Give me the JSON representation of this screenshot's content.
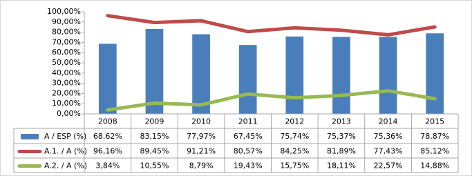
{
  "chart_data": {
    "type": "bar",
    "categories": [
      "2008",
      "2009",
      "2010",
      "2011",
      "2012",
      "2013",
      "2014",
      "2015"
    ],
    "series": [
      {
        "name": "A / ESP (%)",
        "type": "bar",
        "color": "#4a7ebb",
        "values": [
          68.62,
          83.15,
          77.97,
          67.45,
          75.74,
          75.37,
          75.36,
          78.87
        ],
        "value_labels": [
          "68,62%",
          "83,15%",
          "77,97%",
          "67,45%",
          "75,74%",
          "75,37%",
          "75,36%",
          "78,87%"
        ]
      },
      {
        "name": "A.1. / A (%)",
        "type": "line",
        "color": "#be4b48",
        "values": [
          96.16,
          89.45,
          91.21,
          80.57,
          84.25,
          81.89,
          77.43,
          85.12
        ],
        "value_labels": [
          "96,16%",
          "89,45%",
          "91,21%",
          "80,57%",
          "84,25%",
          "81,89%",
          "77,43%",
          "85,12%"
        ]
      },
      {
        "name": "A.2. / A (%)",
        "type": "line",
        "color": "#98b954",
        "values": [
          3.84,
          10.55,
          8.79,
          19.43,
          15.75,
          18.11,
          22.57,
          14.88
        ],
        "value_labels": [
          "3,84%",
          "10,55%",
          "8,79%",
          "19,43%",
          "15,75%",
          "18,11%",
          "22,57%",
          "14,88%"
        ]
      }
    ],
    "ylim": [
      0,
      100
    ],
    "yticks": [
      {
        "value": 0,
        "label": "0,00%"
      },
      {
        "value": 10,
        "label": "10,00%"
      },
      {
        "value": 20,
        "label": "20,00%"
      },
      {
        "value": 30,
        "label": "30,00%"
      },
      {
        "value": 40,
        "label": "40,00%"
      },
      {
        "value": 50,
        "label": "50,00%"
      },
      {
        "value": 60,
        "label": "60,00%"
      },
      {
        "value": 70,
        "label": "70,00%"
      },
      {
        "value": 80,
        "label": "80,00%"
      },
      {
        "value": 90,
        "label": "90,00%"
      },
      {
        "value": 100,
        "label": "100,00%"
      }
    ],
    "grid": false
  }
}
